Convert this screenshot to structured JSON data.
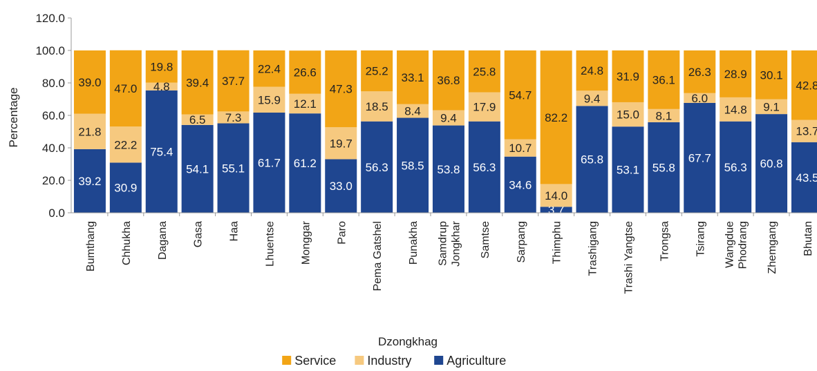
{
  "chart_data": {
    "type": "bar",
    "stacked": true,
    "xlabel": "Dzongkhag",
    "ylabel": "Percentage",
    "ylim": [
      0,
      120
    ],
    "yticks": [
      "0.0",
      "20.0",
      "40.0",
      "60.0",
      "80.0",
      "100.0",
      "120.0"
    ],
    "grid": false,
    "legend_position": "bottom",
    "categories": [
      [
        "Bumthang"
      ],
      [
        "Chhukha"
      ],
      [
        "Dagana"
      ],
      [
        "Gasa"
      ],
      [
        "Haa"
      ],
      [
        "Lhuentse"
      ],
      [
        "Monggar"
      ],
      [
        "Paro"
      ],
      [
        "Pema Gatshel"
      ],
      [
        "Punakha"
      ],
      [
        "Samdrup",
        "Jongkhar"
      ],
      [
        "Samtse"
      ],
      [
        "Sarpang"
      ],
      [
        "Thimphu"
      ],
      [
        "Trashigang"
      ],
      [
        "Trashi Yangtse"
      ],
      [
        "Trongsa"
      ],
      [
        "Tsirang"
      ],
      [
        "Wangdue",
        "Phodrang"
      ],
      [
        "Zhemgang"
      ],
      [
        "Bhutan"
      ]
    ],
    "series": [
      {
        "name": "Agriculture",
        "color": "#1f4690",
        "label_color": "#ffffff",
        "values": [
          39.2,
          30.9,
          75.4,
          54.1,
          55.1,
          61.7,
          61.2,
          33.0,
          56.3,
          58.5,
          53.8,
          56.3,
          34.6,
          3.7,
          65.8,
          53.1,
          55.8,
          67.7,
          56.3,
          60.8,
          43.5
        ],
        "labels": [
          "39.2",
          "30.9",
          "75.4",
          "54.1",
          "55.1",
          "61.7",
          "61.2",
          "33.0",
          "56.3",
          "58.5",
          "53.8",
          "56.3",
          "34.6",
          "3.7",
          "65.8",
          "53.1",
          "55.8",
          "67.7",
          "56.3",
          "60.8",
          "43.5"
        ]
      },
      {
        "name": "Industry",
        "color": "#f6c97f",
        "label_color": "#222222",
        "values": [
          21.8,
          22.2,
          4.8,
          6.5,
          7.3,
          15.9,
          12.1,
          19.7,
          18.5,
          8.4,
          9.4,
          17.9,
          10.7,
          14.0,
          9.4,
          15.0,
          8.1,
          6.0,
          14.8,
          9.1,
          13.7
        ],
        "labels": [
          "21.8",
          "22.2",
          "4.8",
          "6.5",
          "7.3",
          "15.9",
          "12.1",
          "19.7",
          "18.5",
          "8.4",
          "9.4",
          "17.9",
          "10.7",
          "14.0",
          "9.4",
          "15.0",
          "8.1",
          "6.0",
          "14.8",
          "9.1",
          "13.7"
        ]
      },
      {
        "name": "Service",
        "color": "#f2a516",
        "label_color": "#222222",
        "values": [
          39.0,
          47.0,
          19.8,
          39.4,
          37.7,
          22.4,
          26.6,
          47.3,
          25.2,
          33.1,
          36.8,
          25.8,
          54.7,
          82.2,
          24.8,
          31.9,
          36.1,
          26.3,
          28.9,
          30.1,
          42.8
        ],
        "labels": [
          "39.0",
          "47.0",
          "19.8",
          "39.4",
          "37.7",
          "22.4",
          "26.6",
          "47.3",
          "25.2",
          "33.1",
          "36.8",
          "25.8",
          "54.7",
          "82.2",
          "24.8",
          "31.9",
          "36.1",
          "26.3",
          "28.9",
          "30.1",
          "42.8"
        ]
      }
    ],
    "legend_order": [
      "Service",
      "Industry",
      "Agriculture"
    ]
  }
}
